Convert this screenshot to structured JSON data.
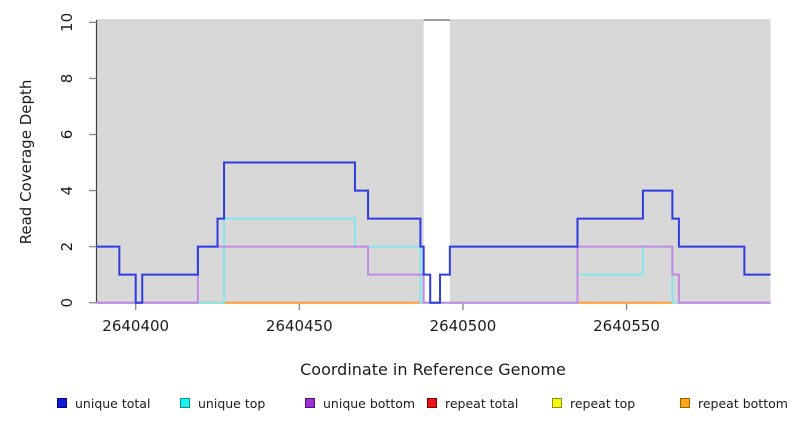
{
  "chart_data": {
    "type": "line",
    "subtype": "step",
    "title": "",
    "xlabel": "Coordinate in Reference Genome",
    "ylabel": "Read Coverage Depth",
    "xlim": [
      2640388,
      2640594
    ],
    "ylim": [
      0,
      10
    ],
    "x_ticks": [
      2640400,
      2640450,
      2640500,
      2640550
    ],
    "y_ticks": [
      0,
      2,
      4,
      6,
      8,
      10
    ],
    "grid": false,
    "plot_background": "#d8d8d8",
    "gap_region": {
      "x_start": 2640488,
      "x_end": 2640496
    },
    "series": [
      {
        "name": "unique total",
        "color": "#2f3ce0",
        "steps": [
          [
            2640388,
            2
          ],
          [
            2640395,
            1
          ],
          [
            2640400,
            0
          ],
          [
            2640402,
            1
          ],
          [
            2640419,
            2
          ],
          [
            2640425,
            3
          ],
          [
            2640427,
            5
          ],
          [
            2640467,
            4
          ],
          [
            2640471,
            3
          ],
          [
            2640487,
            2
          ],
          [
            2640488,
            1
          ],
          [
            2640490,
            0
          ],
          [
            2640493,
            1
          ],
          [
            2640496,
            2
          ],
          [
            2640535,
            3
          ],
          [
            2640555,
            4
          ],
          [
            2640564,
            3
          ],
          [
            2640566,
            2
          ],
          [
            2640586,
            1
          ],
          [
            2640594,
            1
          ]
        ]
      },
      {
        "name": "unique top",
        "color": "#84e6ec",
        "steps": [
          [
            2640388,
            0
          ],
          [
            2640427,
            3
          ],
          [
            2640467,
            2
          ],
          [
            2640487,
            0
          ],
          [
            2640535,
            1
          ],
          [
            2640555,
            2
          ],
          [
            2640564,
            0
          ],
          [
            2640594,
            0
          ]
        ]
      },
      {
        "name": "unique bottom",
        "color": "#c18ae3",
        "steps": [
          [
            2640388,
            0
          ],
          [
            2640419,
            2
          ],
          [
            2640471,
            1
          ],
          [
            2640488,
            0
          ],
          [
            2640535,
            2
          ],
          [
            2640564,
            1
          ],
          [
            2640566,
            0
          ],
          [
            2640594,
            0
          ]
        ]
      },
      {
        "name": "repeat total",
        "color": "#e03030",
        "steps": [
          [
            2640388,
            0
          ],
          [
            2640594,
            0
          ]
        ]
      },
      {
        "name": "repeat top",
        "color": "#f5f50f",
        "steps": [
          [
            2640388,
            0
          ],
          [
            2640594,
            0
          ]
        ]
      },
      {
        "name": "repeat bottom",
        "color": "#ff9d2e",
        "steps": [
          [
            2640388,
            0
          ],
          [
            2640594,
            0
          ]
        ]
      }
    ],
    "zero_line_rendered_segments": [
      {
        "x_start": 2640388,
        "x_end": 2640419,
        "color": "#cf5090"
      },
      {
        "x_start": 2640419,
        "x_end": 2640488,
        "color": "#ff9d2e"
      },
      {
        "x_start": 2640496,
        "x_end": 2640535,
        "color": "#8bc88b"
      },
      {
        "x_start": 2640535,
        "x_end": 2640566,
        "color": "#ff9d2e"
      },
      {
        "x_start": 2640566,
        "x_end": 2640594,
        "color": "#cf5090"
      }
    ],
    "legend_position": "bottom",
    "legend": [
      {
        "label": "unique total",
        "fill": "#0f1ad8",
        "border": "#000080"
      },
      {
        "label": "unique top",
        "fill": "#19f0f0",
        "border": "#0a8f8f"
      },
      {
        "label": "unique bottom",
        "fill": "#9c2fd1",
        "border": "#4f1277"
      },
      {
        "label": "repeat total",
        "fill": "#e81717",
        "border": "#7d0000"
      },
      {
        "label": "repeat top",
        "fill": "#f7f70f",
        "border": "#8f8f00"
      },
      {
        "label": "repeat bottom",
        "fill": "#ffa51e",
        "border": "#9c5f00"
      }
    ]
  }
}
